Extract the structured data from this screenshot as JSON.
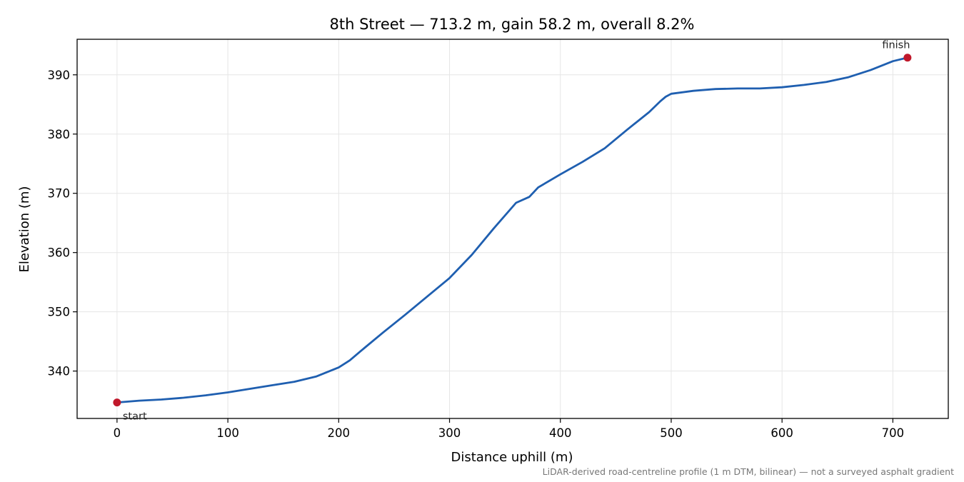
{
  "chart_data": {
    "type": "line",
    "title": "8th Street — 713.2 m, gain 58.2 m, overall 8.2%",
    "xlabel": "Distance uphill (m)",
    "ylabel": "Elevation (m)",
    "xlim": [
      -36,
      750
    ],
    "ylim": [
      332,
      396
    ],
    "xticks": [
      0,
      100,
      200,
      300,
      400,
      500,
      600,
      700
    ],
    "yticks": [
      340,
      350,
      360,
      370,
      380,
      390
    ],
    "grid": true,
    "series": [
      {
        "color": "#1f5fb0",
        "x": [
          0,
          20,
          40,
          60,
          80,
          100,
          120,
          140,
          160,
          180,
          200,
          210,
          220,
          240,
          260,
          280,
          300,
          320,
          340,
          360,
          372,
          380,
          400,
          420,
          440,
          460,
          480,
          490,
          495,
          500,
          520,
          540,
          560,
          580,
          600,
          620,
          640,
          660,
          680,
          700,
          713.2
        ],
        "y": [
          334.7,
          335.0,
          335.2,
          335.5,
          335.9,
          336.4,
          337.0,
          337.6,
          338.2,
          339.1,
          340.6,
          341.8,
          343.4,
          346.5,
          349.5,
          352.6,
          355.7,
          359.6,
          364.1,
          368.4,
          369.4,
          371.0,
          373.2,
          375.3,
          377.6,
          380.7,
          383.7,
          385.5,
          386.3,
          386.8,
          387.3,
          387.6,
          387.7,
          387.7,
          387.9,
          388.3,
          388.8,
          389.6,
          390.8,
          392.3,
          392.9
        ]
      }
    ],
    "annotations": [
      {
        "label": "start",
        "x": 0,
        "y": 334.7
      },
      {
        "label": "finish",
        "x": 713.2,
        "y": 392.9
      }
    ],
    "point_color": "#c0182b",
    "footnote": "LiDAR-derived road-centreline profile (1 m DTM, bilinear) — not a surveyed asphalt gradient"
  }
}
